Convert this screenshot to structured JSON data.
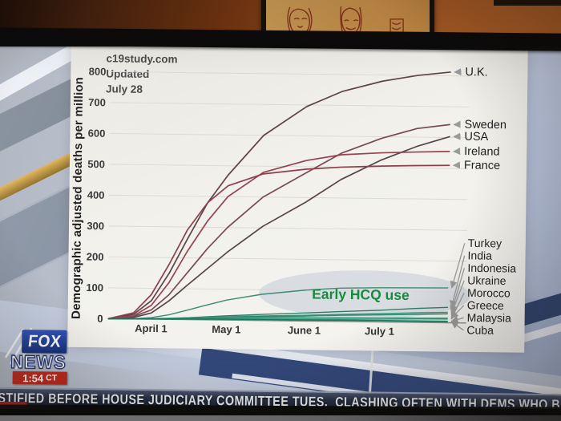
{
  "screen": {
    "source_label": "c19study.com",
    "updated_label": "Updated",
    "updated_date": "July 28",
    "y_axis_label": "Demographic adjusted deaths per million"
  },
  "chart_data": {
    "type": "line",
    "title": "",
    "ylabel": "Demographic adjusted deaths per million",
    "source": "c19study.com",
    "updated": "July 28",
    "grid": true,
    "ylim": [
      0,
      860
    ],
    "y_ticks": [
      0,
      100,
      200,
      300,
      400,
      500,
      600,
      700,
      800
    ],
    "x_days": [
      0,
      10,
      17,
      24,
      31,
      39,
      47,
      61,
      78,
      92,
      108,
      122,
      135
    ],
    "x_ticks": [
      {
        "label": "April 1",
        "day": 17
      },
      {
        "label": "May 1",
        "day": 47
      },
      {
        "label": "June 1",
        "day": 78
      },
      {
        "label": "July 1",
        "day": 108
      }
    ],
    "annotation": {
      "text": "Early HCQ use",
      "color": "#178a3e"
    },
    "arrow_color": "#9a9a9a",
    "series": [
      {
        "name": "U.K.",
        "group": "late",
        "color": "#5d4247",
        "values": [
          0,
          15,
          60,
          150,
          260,
          380,
          470,
          600,
          695,
          745,
          780,
          800,
          812
        ]
      },
      {
        "name": "Sweden",
        "group": "late",
        "color": "#7a4a52",
        "values": [
          0,
          8,
          30,
          80,
          150,
          230,
          300,
          400,
          480,
          545,
          595,
          628,
          642
        ]
      },
      {
        "name": "USA",
        "group": "late",
        "color": "#564449",
        "values": [
          0,
          5,
          20,
          60,
          110,
          165,
          220,
          305,
          385,
          460,
          525,
          570,
          603
        ]
      },
      {
        "name": "Ireland",
        "group": "late",
        "color": "#96424f",
        "values": [
          0,
          10,
          45,
          120,
          220,
          320,
          400,
          480,
          520,
          540,
          548,
          552,
          555
        ]
      },
      {
        "name": "France",
        "group": "late",
        "color": "#8c3f4c",
        "values": [
          0,
          20,
          80,
          180,
          290,
          380,
          435,
          475,
          492,
          500,
          505,
          508,
          510
        ]
      },
      {
        "name": "Turkey",
        "group": "early_hcq",
        "color": "#3f8a72",
        "values": [
          0,
          1,
          5,
          15,
          30,
          48,
          65,
          85,
          100,
          108,
          111,
          112,
          113
        ]
      },
      {
        "name": "India",
        "group": "early_hcq",
        "color": "#2f7d66",
        "values": [
          0,
          0,
          1,
          3,
          6,
          10,
          14,
          20,
          26,
          32,
          38,
          45,
          50
        ]
      },
      {
        "name": "Indonesia",
        "group": "early_hcq",
        "color": "#46937c",
        "values": [
          0,
          0,
          1,
          3,
          5,
          8,
          11,
          15,
          19,
          23,
          27,
          31,
          34
        ]
      },
      {
        "name": "Ukraine",
        "group": "early_hcq",
        "color": "#2a8a6e",
        "values": [
          0,
          0,
          1,
          2,
          4,
          6,
          9,
          13,
          16,
          20,
          23,
          26,
          29
        ]
      },
      {
        "name": "Morocco",
        "group": "early_hcq",
        "color": "#57a08a",
        "values": [
          0,
          0,
          1,
          2,
          3,
          4,
          5,
          6,
          7,
          8,
          9,
          11,
          12
        ]
      },
      {
        "name": "Greece",
        "group": "early_hcq",
        "color": "#2f8f74",
        "values": [
          0,
          1,
          2,
          4,
          6,
          8,
          9,
          10,
          11,
          12,
          13,
          14,
          15
        ]
      },
      {
        "name": "Malaysia",
        "group": "early_hcq",
        "color": "#1f8a68",
        "values": [
          0,
          0,
          1,
          2,
          3,
          3,
          4,
          4,
          4,
          5,
          5,
          5,
          5
        ]
      },
      {
        "name": "Cuba",
        "group": "early_hcq",
        "color": "#0f7a5c",
        "values": [
          0,
          0,
          1,
          1,
          2,
          2,
          3,
          3,
          3,
          4,
          4,
          4,
          4
        ]
      }
    ]
  },
  "foxnews": {
    "brand_top": "FOX",
    "brand_bottom": "NEWS",
    "time": "1:54",
    "timezone": "CT"
  },
  "chyron": {
    "text": "ESTIFIED BEFORE HOUSE JUDICIARY COMMITTEE TUES,  CLASHING OFTEN WITH DEMS WHO BLASTED GOV"
  }
}
